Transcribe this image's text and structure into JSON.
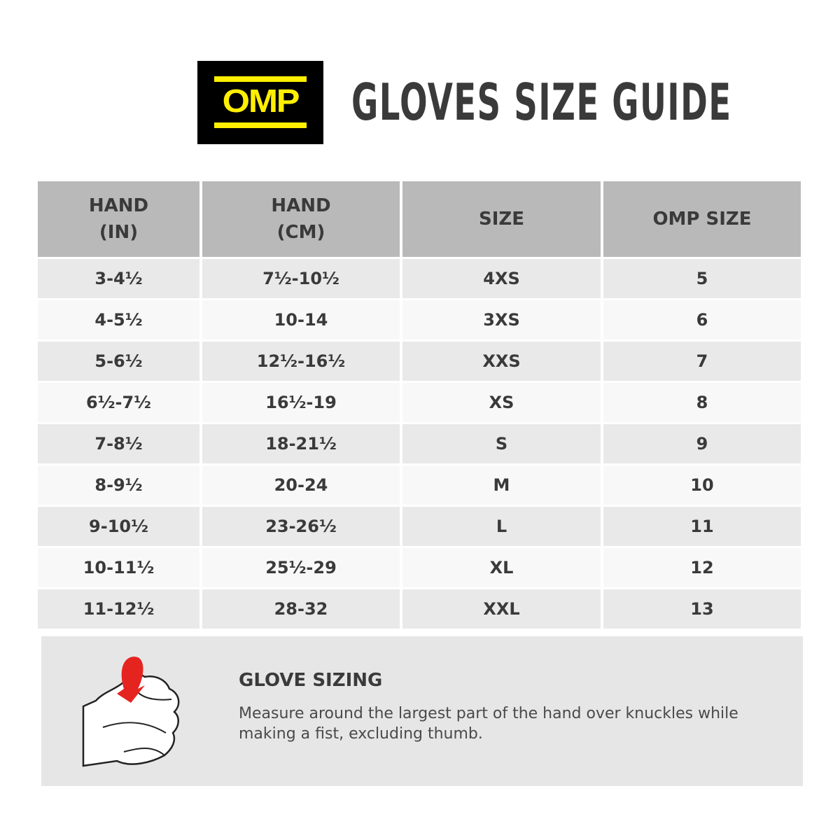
{
  "logo": {
    "text": "OMP",
    "colors": {
      "background": "#000000",
      "foreground": "#ffef00"
    }
  },
  "header": {
    "title": "GLOVES SIZE GUIDE"
  },
  "table": {
    "headers": [
      [
        "HAND",
        "(IN)"
      ],
      [
        "HAND",
        "(CM)"
      ],
      [
        "SIZE"
      ],
      [
        "OMP SIZE"
      ]
    ],
    "rows": [
      [
        "3-4½",
        "7½-10½",
        "4XS",
        "5"
      ],
      [
        "4-5½",
        "10-14",
        "3XS",
        "6"
      ],
      [
        "5-6½",
        "12½-16½",
        "XXS",
        "7"
      ],
      [
        "6½-7½",
        "16½-19",
        "XS",
        "8"
      ],
      [
        "7-8½",
        "18-21½",
        "S",
        "9"
      ],
      [
        "8-9½",
        "20-24",
        "M",
        "10"
      ],
      [
        "9-10½",
        "23-26½",
        "L",
        "11"
      ],
      [
        "10-11½",
        "25½-29",
        "XL",
        "12"
      ],
      [
        "11-12½",
        "28-32",
        "XXL",
        "13"
      ]
    ]
  },
  "info": {
    "icon": "fist-measure-icon",
    "title": "GLOVE SIZING",
    "text": "Measure around the largest part of the hand over knuckles while making a fist, excluding thumb."
  }
}
